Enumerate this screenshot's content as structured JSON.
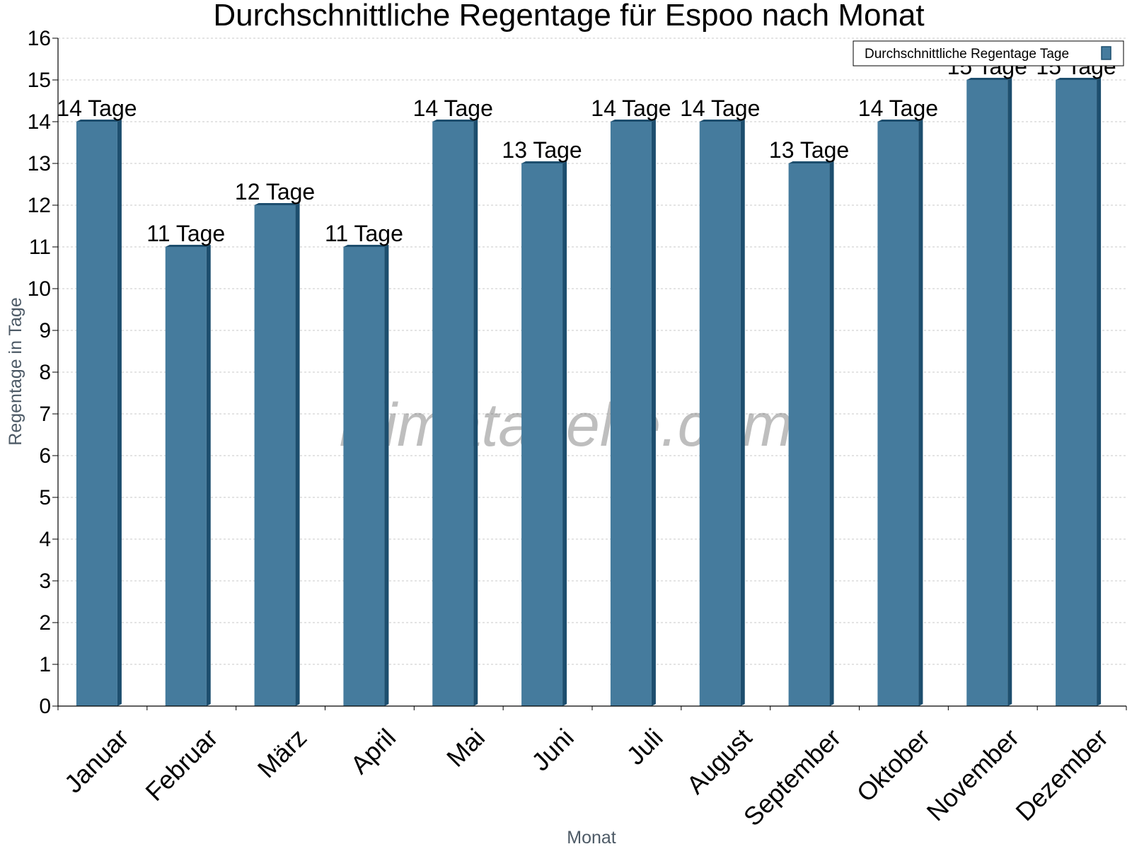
{
  "chart_data": {
    "type": "bar",
    "title": "Durchschnittliche Regentage für Espoo nach Monat",
    "xlabel": "Monat",
    "ylabel": "Regentage in Tage",
    "ylim": [
      0,
      16
    ],
    "ytick_step": 1,
    "grid": true,
    "legend_position": "top-right",
    "categories": [
      "Januar",
      "Februar",
      "März",
      "April",
      "Mai",
      "Juni",
      "Juli",
      "August",
      "September",
      "Oktober",
      "November",
      "Dezember"
    ],
    "series": [
      {
        "name": "Durchschnittliche Regentage Tage",
        "values": [
          14,
          11,
          12,
          11,
          14,
          13,
          14,
          14,
          13,
          14,
          15,
          15
        ],
        "data_labels": [
          "14 Tage",
          "11 Tage",
          "12 Tage",
          "11 Tage",
          "14 Tage",
          "13 Tage",
          "14 Tage",
          "14 Tage",
          "13 Tage",
          "14 Tage",
          "15 Tage",
          "15 Tage"
        ]
      }
    ],
    "watermark": "klimatabelle.com",
    "colors": {
      "bar": "#457b9d",
      "bar_side": "#1d4e6e",
      "bar_top": "#1d4e6e"
    }
  }
}
